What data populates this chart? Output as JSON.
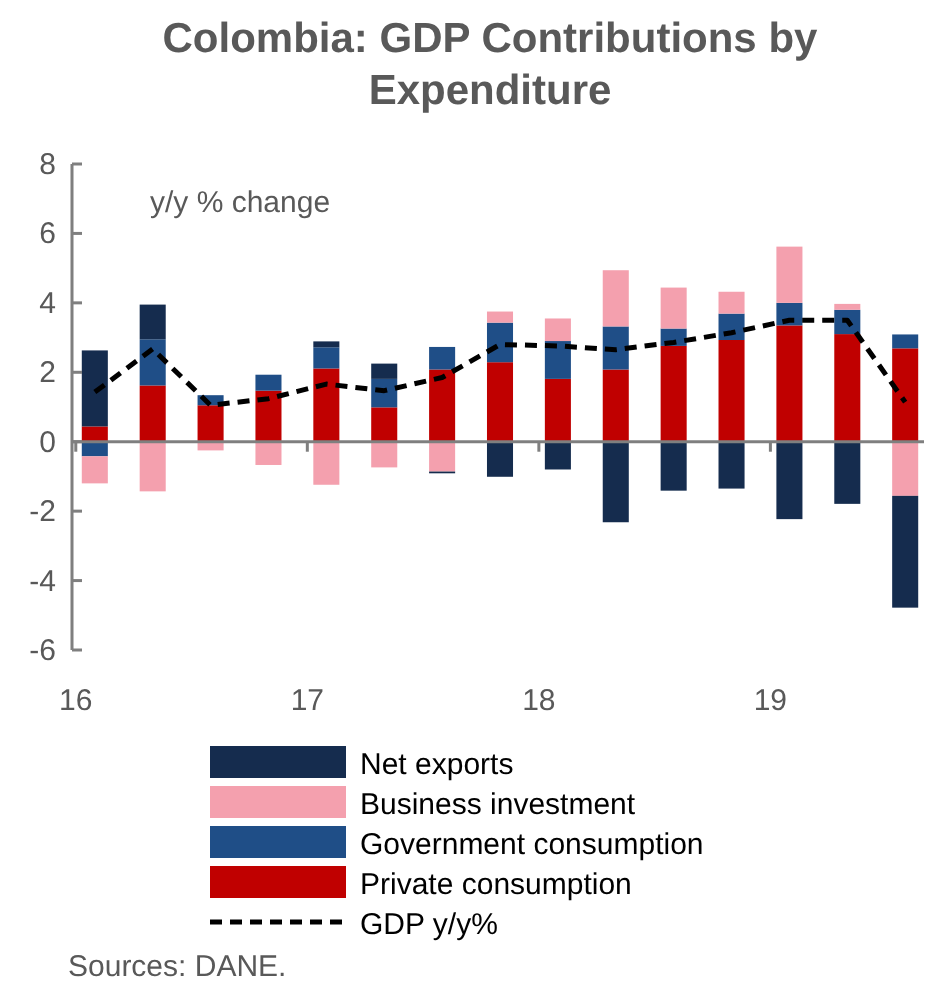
{
  "chart_data": {
    "type": "bar",
    "title": "Colombia: GDP Contributions by Expenditure",
    "ylabel": "y/y % change",
    "categories": [
      "16",
      null,
      null,
      null,
      "17",
      null,
      null,
      null,
      "18",
      null,
      null,
      null,
      "19",
      null,
      null
    ],
    "stacked": true,
    "series": [
      {
        "name": "Private consumption",
        "color": "#c00000",
        "values": [
          0.44,
          1.62,
          1.05,
          1.47,
          2.11,
          0.99,
          2.08,
          2.29,
          1.81,
          2.08,
          2.76,
          2.93,
          3.35,
          3.1,
          2.69
        ]
      },
      {
        "name": "Government consumption",
        "color": "#1f4e87",
        "values": [
          -0.42,
          1.33,
          0.29,
          0.46,
          0.61,
          0.82,
          0.65,
          1.14,
          1.09,
          1.24,
          0.5,
          0.76,
          0.65,
          0.7,
          0.4
        ]
      },
      {
        "name": "Business investment",
        "color": "#f4a0ae",
        "values": [
          -0.78,
          -1.43,
          -0.25,
          -0.67,
          -1.24,
          -0.74,
          -0.86,
          0.32,
          0.65,
          1.62,
          1.18,
          0.63,
          1.62,
          0.17,
          -1.56
        ]
      },
      {
        "name": "Net exports",
        "color": "#152c4e",
        "values": [
          2.19,
          1.0,
          0.0,
          0.0,
          0.17,
          0.44,
          -0.05,
          -1.01,
          -0.8,
          -2.32,
          -1.41,
          -1.35,
          -2.23,
          -1.79,
          -3.22
        ]
      },
      {
        "name": "GDP y/y%",
        "type": "line",
        "color": "#000000",
        "line_style": "dashed",
        "marker": "none",
        "values": [
          1.43,
          2.67,
          1.05,
          1.24,
          1.66,
          1.47,
          1.85,
          2.8,
          2.76,
          2.65,
          2.86,
          3.14,
          3.5,
          3.5,
          1.14
        ]
      }
    ],
    "ylim": [
      -6,
      8
    ],
    "yticks": [
      -6,
      -4,
      -2,
      0,
      2,
      4,
      6,
      8
    ],
    "legend": "bottom",
    "ref_lines": [
      {
        "axis": "y",
        "value": 0,
        "color": "#7f7f7f"
      }
    ],
    "annotations": [
      "Sources: DANE."
    ]
  }
}
